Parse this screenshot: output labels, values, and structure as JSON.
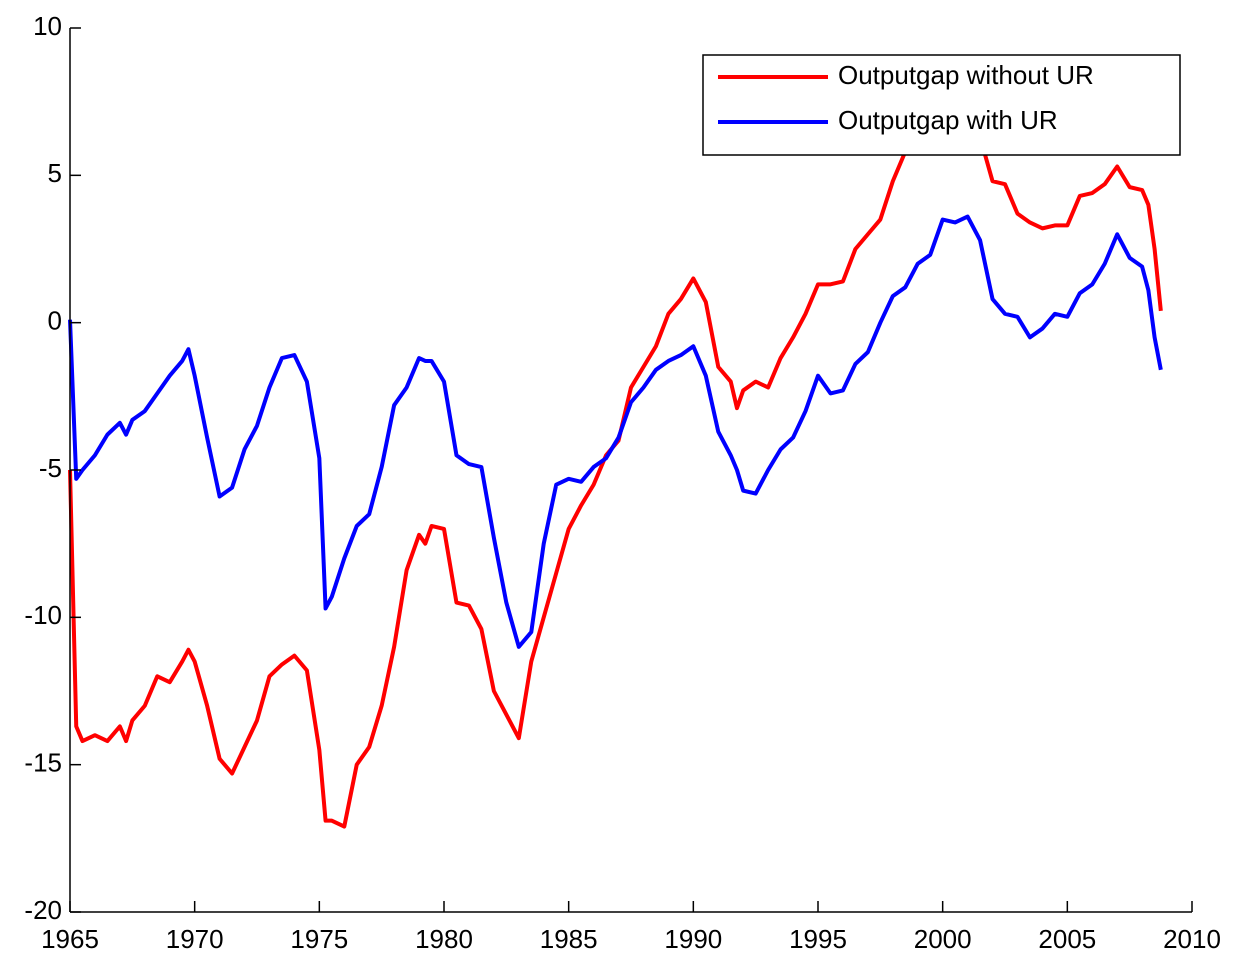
{
  "chart_data": {
    "type": "line",
    "x": [
      1965,
      1965.25,
      1965.5,
      1966,
      1966.5,
      1967,
      1967.25,
      1967.5,
      1968,
      1968.5,
      1969,
      1969.5,
      1969.75,
      1970,
      1970.5,
      1971,
      1971.5,
      1972,
      1972.5,
      1973,
      1973.5,
      1974,
      1974.5,
      1975,
      1975.25,
      1975.5,
      1976,
      1976.5,
      1977,
      1977.5,
      1978,
      1978.5,
      1979,
      1979.25,
      1979.5,
      1980,
      1980.5,
      1981,
      1981.5,
      1982,
      1982.5,
      1983,
      1983.5,
      1984,
      1984.5,
      1985,
      1985.5,
      1986,
      1986.5,
      1987,
      1987.5,
      1988,
      1988.5,
      1989,
      1989.5,
      1990,
      1990.5,
      1991,
      1991.5,
      1991.75,
      1992,
      1992.5,
      1993,
      1993.5,
      1994,
      1994.5,
      1995,
      1995.5,
      1996,
      1996.5,
      1997,
      1997.5,
      1998,
      1998.5,
      1999,
      1999.5,
      2000,
      2000.5,
      2001,
      2001.5,
      2002,
      2002.5,
      2003,
      2003.5,
      2004,
      2004.5,
      2005,
      2005.5,
      2006,
      2006.5,
      2007,
      2007.5,
      2008,
      2008.25,
      2008.5,
      2008.75
    ],
    "series": [
      {
        "name": "Outputgap without UR",
        "color": "#ff0000",
        "values": [
          -5,
          -13.7,
          -14.2,
          -14.0,
          -14.2,
          -13.7,
          -14.2,
          -13.5,
          -13.0,
          -12.0,
          -12.2,
          -11.5,
          -11.1,
          -11.5,
          -13.0,
          -14.8,
          -15.3,
          -14.4,
          -13.5,
          -12.0,
          -11.6,
          -11.3,
          -11.8,
          -14.5,
          -16.9,
          -16.9,
          -17.1,
          -15.0,
          -14.4,
          -13.0,
          -11.0,
          -8.4,
          -7.2,
          -7.5,
          -6.9,
          -7.0,
          -9.5,
          -9.6,
          -10.4,
          -12.5,
          -13.3,
          -14.1,
          -11.5,
          -10.0,
          -8.5,
          -7.0,
          -6.2,
          -5.5,
          -4.5,
          -4.0,
          -2.2,
          -1.5,
          -0.8,
          0.3,
          0.8,
          1.5,
          0.7,
          -1.5,
          -2.0,
          -2.9,
          -2.3,
          -2.0,
          -2.2,
          -1.2,
          -0.5,
          0.3,
          1.3,
          1.3,
          1.4,
          2.5,
          3.0,
          3.5,
          4.8,
          5.8,
          6.2,
          6.8,
          7.3,
          7.5,
          7.4,
          6.3,
          4.8,
          4.7,
          3.7,
          3.4,
          3.2,
          3.3,
          3.3,
          4.3,
          4.4,
          4.7,
          5.3,
          4.6,
          4.5,
          4.0,
          2.5,
          0.4
        ]
      },
      {
        "name": "Outputgap with UR",
        "color": "#0000ff",
        "values": [
          0.1,
          -5.3,
          -5.0,
          -4.5,
          -3.8,
          -3.4,
          -3.8,
          -3.3,
          -3.0,
          -2.4,
          -1.8,
          -1.3,
          -0.9,
          -1.8,
          -3.9,
          -5.9,
          -5.6,
          -4.3,
          -3.5,
          -2.2,
          -1.2,
          -1.1,
          -2.0,
          -4.6,
          -9.7,
          -9.3,
          -8.0,
          -6.9,
          -6.5,
          -4.9,
          -2.8,
          -2.2,
          -1.2,
          -1.3,
          -1.3,
          -2.0,
          -4.5,
          -4.8,
          -4.9,
          -7.3,
          -9.5,
          -11.0,
          -10.5,
          -7.5,
          -5.5,
          -5.3,
          -5.4,
          -4.9,
          -4.6,
          -3.9,
          -2.7,
          -2.2,
          -1.6,
          -1.3,
          -1.1,
          -0.8,
          -1.8,
          -3.7,
          -4.5,
          -5.0,
          -5.7,
          -5.8,
          -5.0,
          -4.3,
          -3.9,
          -3.0,
          -1.8,
          -2.4,
          -2.3,
          -1.4,
          -1.0,
          0.0,
          0.9,
          1.2,
          2.0,
          2.3,
          3.5,
          3.4,
          3.6,
          2.8,
          0.8,
          0.3,
          0.2,
          -0.5,
          -0.2,
          0.3,
          0.2,
          1.0,
          1.3,
          2.0,
          3.0,
          2.2,
          1.9,
          1.1,
          -0.5,
          -1.6
        ]
      }
    ],
    "xlim": [
      1965,
      2010
    ],
    "xticks": [
      1965,
      1970,
      1975,
      1980,
      1985,
      1990,
      1995,
      2000,
      2005,
      2010
    ],
    "ylim": [
      -20,
      10
    ],
    "yticks": [
      -20,
      -15,
      -10,
      -5,
      0,
      5,
      10
    ],
    "legend": "upper right"
  }
}
